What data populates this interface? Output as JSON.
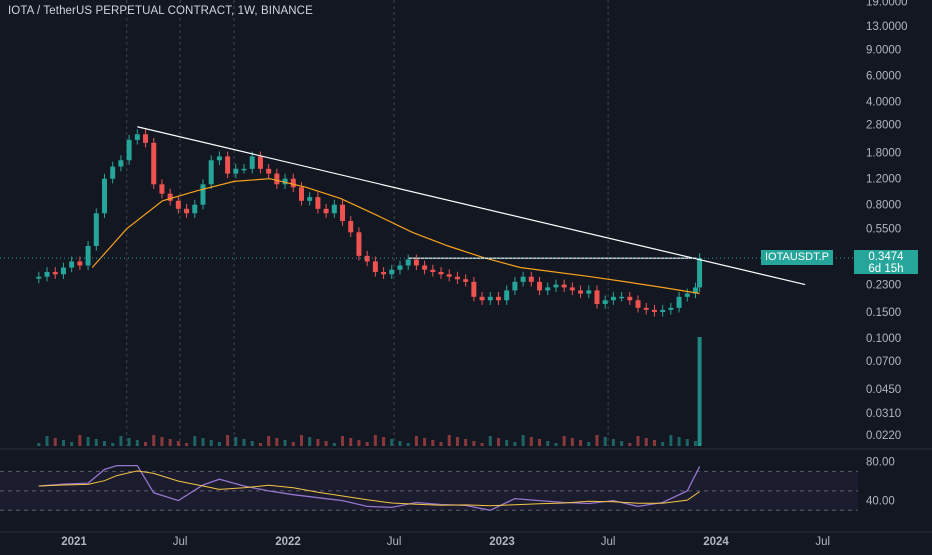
{
  "header": {
    "title": "IOTA / TetherUS PERPETUAL CONTRACT, 1W, BINANCE"
  },
  "price_label": {
    "ticker": "IOTAUSDT.P",
    "price": "0.3474",
    "countdown": "6d 15h"
  },
  "colors": {
    "background": "#131722",
    "up": "#26a69a",
    "down": "#ef5350",
    "ma": "#f7a21b",
    "rsi": "#9575cd",
    "rsi_ma": "#f5c542",
    "trendline": "#ffffff"
  },
  "chart_data": [
    {
      "type": "candlestick",
      "scale": "log",
      "x_axis_labels": [
        "2021",
        "Jul",
        "2022",
        "Jul",
        "2023",
        "Jul",
        "2024",
        "Jul"
      ],
      "y_axis_labels": [
        "19.0000",
        "13.0000",
        "9.0000",
        "6.0000",
        "4.0000",
        "2.8000",
        "1.8000",
        "1.2000",
        "0.8000",
        "0.5500",
        "0.3474",
        "0.2300",
        "0.1500",
        "0.1000",
        "0.0700",
        "0.0450",
        "0.0310",
        "0.0220"
      ],
      "ylim": [
        0.02,
        20
      ],
      "close_series": [
        {
          "date": "2020-11-02",
          "close": 0.26
        },
        {
          "date": "2020-11-16",
          "close": 0.28
        },
        {
          "date": "2020-11-30",
          "close": 0.27
        },
        {
          "date": "2020-12-14",
          "close": 0.3
        },
        {
          "date": "2020-12-28",
          "close": 0.33
        },
        {
          "date": "2021-01-11",
          "close": 0.31
        },
        {
          "date": "2021-01-25",
          "close": 0.42
        },
        {
          "date": "2021-02-08",
          "close": 0.7
        },
        {
          "date": "2021-02-22",
          "close": 1.2
        },
        {
          "date": "2021-03-08",
          "close": 1.45
        },
        {
          "date": "2021-03-22",
          "close": 1.6
        },
        {
          "date": "2021-04-05",
          "close": 2.2
        },
        {
          "date": "2021-04-19",
          "close": 2.4
        },
        {
          "date": "2021-05-03",
          "close": 2.1
        },
        {
          "date": "2021-05-17",
          "close": 1.1
        },
        {
          "date": "2021-05-31",
          "close": 0.95
        },
        {
          "date": "2021-06-14",
          "close": 0.85
        },
        {
          "date": "2021-06-28",
          "close": 0.75
        },
        {
          "date": "2021-07-12",
          "close": 0.7
        },
        {
          "date": "2021-07-26",
          "close": 0.8
        },
        {
          "date": "2021-08-09",
          "close": 1.1
        },
        {
          "date": "2021-08-23",
          "close": 1.6
        },
        {
          "date": "2021-09-06",
          "close": 1.7
        },
        {
          "date": "2021-09-20",
          "close": 1.3
        },
        {
          "date": "2021-10-04",
          "close": 1.4
        },
        {
          "date": "2021-10-18",
          "close": 1.4
        },
        {
          "date": "2021-11-01",
          "close": 1.7
        },
        {
          "date": "2021-11-15",
          "close": 1.4
        },
        {
          "date": "2021-11-29",
          "close": 1.3
        },
        {
          "date": "2021-12-13",
          "close": 1.1
        },
        {
          "date": "2021-12-27",
          "close": 1.2
        },
        {
          "date": "2022-01-10",
          "close": 1.05
        },
        {
          "date": "2022-01-24",
          "close": 0.85
        },
        {
          "date": "2022-02-07",
          "close": 0.9
        },
        {
          "date": "2022-02-21",
          "close": 0.75
        },
        {
          "date": "2022-03-07",
          "close": 0.7
        },
        {
          "date": "2022-03-21",
          "close": 0.8
        },
        {
          "date": "2022-04-04",
          "close": 0.62
        },
        {
          "date": "2022-04-18",
          "close": 0.52
        },
        {
          "date": "2022-05-02",
          "close": 0.36
        },
        {
          "date": "2022-05-16",
          "close": 0.33
        },
        {
          "date": "2022-05-30",
          "close": 0.28
        },
        {
          "date": "2022-06-13",
          "close": 0.27
        },
        {
          "date": "2022-06-27",
          "close": 0.29
        },
        {
          "date": "2022-07-11",
          "close": 0.31
        },
        {
          "date": "2022-07-25",
          "close": 0.34
        },
        {
          "date": "2022-08-08",
          "close": 0.31
        },
        {
          "date": "2022-08-22",
          "close": 0.29
        },
        {
          "date": "2022-09-05",
          "close": 0.28
        },
        {
          "date": "2022-09-19",
          "close": 0.27
        },
        {
          "date": "2022-10-03",
          "close": 0.26
        },
        {
          "date": "2022-10-17",
          "close": 0.25
        },
        {
          "date": "2022-10-31",
          "close": 0.24
        },
        {
          "date": "2022-11-14",
          "close": 0.19
        },
        {
          "date": "2022-11-28",
          "close": 0.18
        },
        {
          "date": "2022-12-12",
          "close": 0.19
        },
        {
          "date": "2022-12-26",
          "close": 0.18
        },
        {
          "date": "2023-01-09",
          "close": 0.21
        },
        {
          "date": "2023-01-23",
          "close": 0.24
        },
        {
          "date": "2023-02-06",
          "close": 0.26
        },
        {
          "date": "2023-02-20",
          "close": 0.24
        },
        {
          "date": "2023-03-06",
          "close": 0.21
        },
        {
          "date": "2023-03-20",
          "close": 0.22
        },
        {
          "date": "2023-04-03",
          "close": 0.23
        },
        {
          "date": "2023-04-17",
          "close": 0.22
        },
        {
          "date": "2023-05-01",
          "close": 0.21
        },
        {
          "date": "2023-05-15",
          "close": 0.2
        },
        {
          "date": "2023-05-29",
          "close": 0.21
        },
        {
          "date": "2023-06-12",
          "close": 0.17
        },
        {
          "date": "2023-06-26",
          "close": 0.18
        },
        {
          "date": "2023-07-10",
          "close": 0.19
        },
        {
          "date": "2023-07-24",
          "close": 0.19
        },
        {
          "date": "2023-08-07",
          "close": 0.18
        },
        {
          "date": "2023-08-21",
          "close": 0.16
        },
        {
          "date": "2023-09-04",
          "close": 0.155
        },
        {
          "date": "2023-09-18",
          "close": 0.15
        },
        {
          "date": "2023-10-02",
          "close": 0.155
        },
        {
          "date": "2023-10-16",
          "close": 0.16
        },
        {
          "date": "2023-10-30",
          "close": 0.19
        },
        {
          "date": "2023-11-13",
          "close": 0.2
        },
        {
          "date": "2023-11-27",
          "close": 0.22
        },
        {
          "date": "2023-12-04",
          "close": 0.3474
        }
      ],
      "moving_average": [
        {
          "date": "2021-02-01",
          "value": 0.3
        },
        {
          "date": "2021-04-01",
          "value": 0.55
        },
        {
          "date": "2021-06-01",
          "value": 0.85
        },
        {
          "date": "2021-08-01",
          "value": 1.0
        },
        {
          "date": "2021-10-01",
          "value": 1.15
        },
        {
          "date": "2021-12-01",
          "value": 1.2
        },
        {
          "date": "2022-02-01",
          "value": 1.05
        },
        {
          "date": "2022-04-01",
          "value": 0.88
        },
        {
          "date": "2022-06-01",
          "value": 0.68
        },
        {
          "date": "2022-08-01",
          "value": 0.52
        },
        {
          "date": "2022-10-01",
          "value": 0.42
        },
        {
          "date": "2022-12-01",
          "value": 0.35
        },
        {
          "date": "2023-02-01",
          "value": 0.3
        },
        {
          "date": "2023-04-01",
          "value": 0.28
        },
        {
          "date": "2023-06-01",
          "value": 0.26
        },
        {
          "date": "2023-08-01",
          "value": 0.24
        },
        {
          "date": "2023-10-01",
          "value": 0.22
        },
        {
          "date": "2023-12-04",
          "value": 0.2
        }
      ],
      "trendline": [
        {
          "date": "2021-04-19",
          "value": 2.7
        },
        {
          "date": "2024-06-01",
          "value": 0.23
        }
      ],
      "horizontal_level": {
        "value": 0.3474,
        "from": "2022-07-25"
      },
      "volume_spike": {
        "date": "2023-12-04"
      }
    },
    {
      "type": "line",
      "name": "RSI",
      "y_axis_labels": [
        "80.00",
        "40.00"
      ],
      "ylim": [
        20,
        90
      ],
      "bands": [
        70,
        50,
        30
      ],
      "series": [
        {
          "date": "2020-11-02",
          "value": 55
        },
        {
          "date": "2020-12-14",
          "value": 57
        },
        {
          "date": "2021-01-25",
          "value": 58
        },
        {
          "date": "2021-02-22",
          "value": 72
        },
        {
          "date": "2021-03-15",
          "value": 76
        },
        {
          "date": "2021-04-19",
          "value": 76
        },
        {
          "date": "2021-05-17",
          "value": 48
        },
        {
          "date": "2021-06-28",
          "value": 40
        },
        {
          "date": "2021-08-09",
          "value": 56
        },
        {
          "date": "2021-09-06",
          "value": 62
        },
        {
          "date": "2021-10-18",
          "value": 55
        },
        {
          "date": "2021-11-29",
          "value": 50
        },
        {
          "date": "2022-01-10",
          "value": 46
        },
        {
          "date": "2022-02-21",
          "value": 43
        },
        {
          "date": "2022-04-04",
          "value": 40
        },
        {
          "date": "2022-05-16",
          "value": 34
        },
        {
          "date": "2022-06-27",
          "value": 33
        },
        {
          "date": "2022-08-08",
          "value": 38
        },
        {
          "date": "2022-09-19",
          "value": 36
        },
        {
          "date": "2022-10-31",
          "value": 35
        },
        {
          "date": "2022-12-12",
          "value": 30
        },
        {
          "date": "2023-01-23",
          "value": 42
        },
        {
          "date": "2023-03-06",
          "value": 40
        },
        {
          "date": "2023-04-17",
          "value": 38
        },
        {
          "date": "2023-05-29",
          "value": 37
        },
        {
          "date": "2023-07-10",
          "value": 40
        },
        {
          "date": "2023-08-21",
          "value": 34
        },
        {
          "date": "2023-10-02",
          "value": 38
        },
        {
          "date": "2023-11-13",
          "value": 50
        },
        {
          "date": "2023-12-04",
          "value": 75
        }
      ]
    }
  ]
}
